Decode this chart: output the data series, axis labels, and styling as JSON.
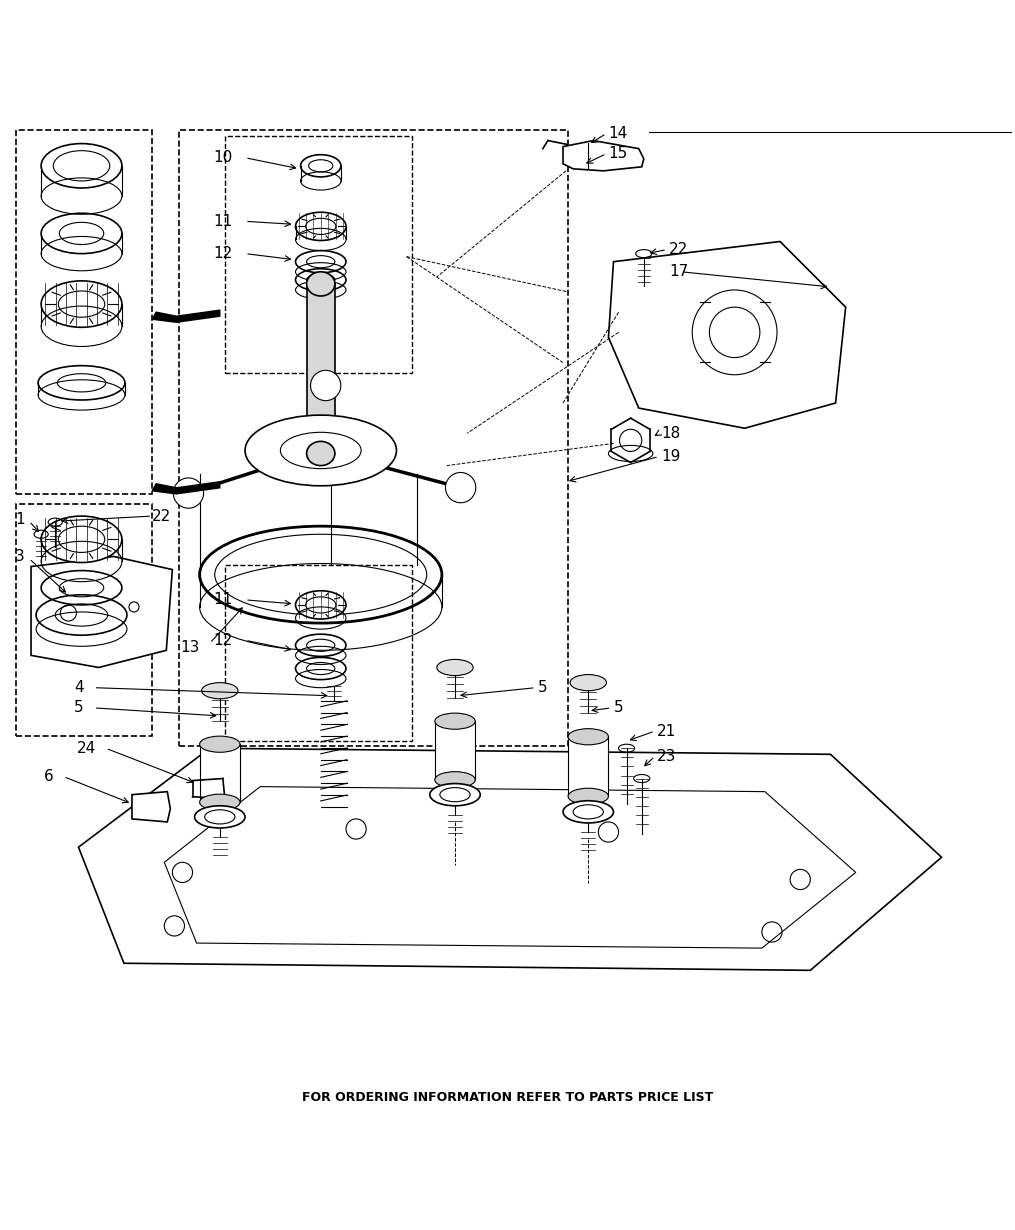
{
  "footer_text": "FOR ORDERING INFORMATION REFER TO PARTS PRICE LIST",
  "bg_color": "#ffffff",
  "line_color": "#000000",
  "footer_fontsize": 9,
  "label_fontsize": 11
}
